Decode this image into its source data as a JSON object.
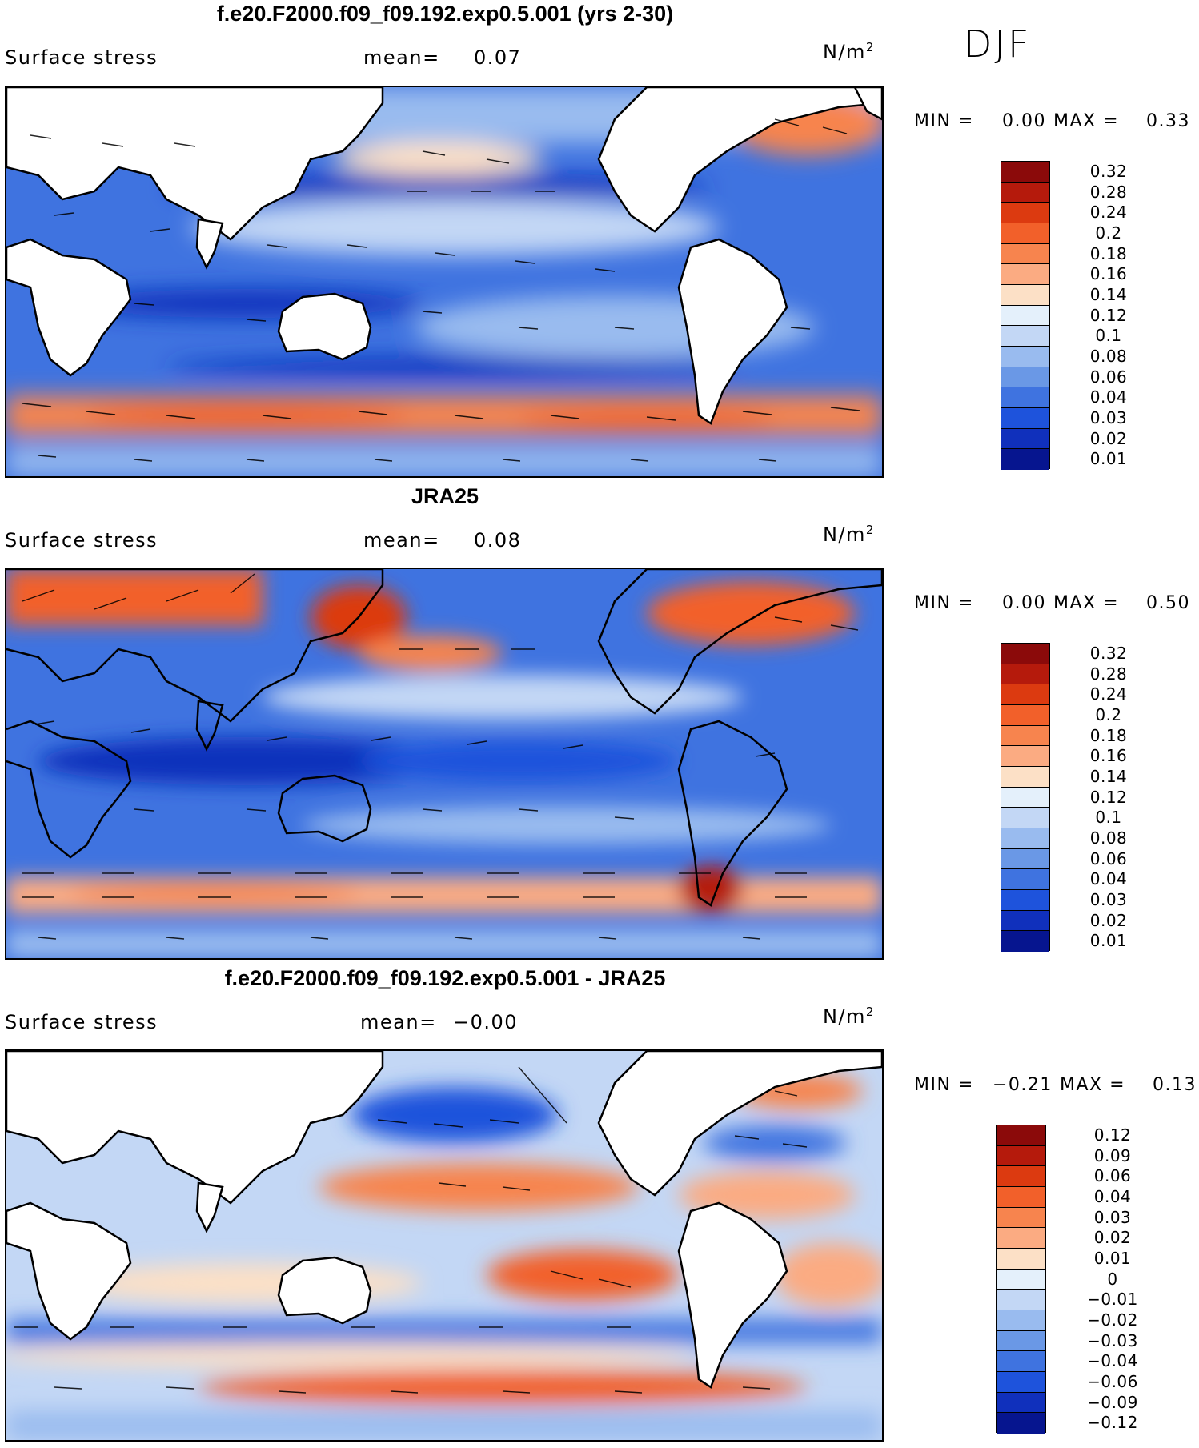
{
  "season": "DJF",
  "panels": [
    {
      "id": "model",
      "title": "f.e20.F2000.f09_f09.192.exp0.5.001 (yrs 2-30)",
      "variable": "Surface stress",
      "mean_label": "mean=",
      "mean_value": "0.07",
      "unit_base": "N/m",
      "unit_exp": "2",
      "min_label": "MIN =",
      "min_value": "0.00",
      "max_label": "MAX =",
      "max_value": "0.33",
      "colorbar_labels": [
        "0.32",
        "0.28",
        "0.24",
        "0.2",
        "0.18",
        "0.16",
        "0.14",
        "0.12",
        "0.1",
        "0.08",
        "0.06",
        "0.04",
        "0.03",
        "0.02",
        "0.01"
      ],
      "colorbar_colors": [
        "#8b0a0a",
        "#b51a0c",
        "#dc3a10",
        "#f2602a",
        "#f7844e",
        "#fbab82",
        "#fce0c6",
        "#e4f0fb",
        "#c3d7f5",
        "#99bbef",
        "#6a98e6",
        "#3f73e0",
        "#1e53dc",
        "#1030bc",
        "#06158f"
      ]
    },
    {
      "id": "obs",
      "title": "JRA25",
      "variable": "Surface stress",
      "mean_label": "mean=",
      "mean_value": "0.08",
      "unit_base": "N/m",
      "unit_exp": "2",
      "min_label": "MIN =",
      "min_value": "0.00",
      "max_label": "MAX =",
      "max_value": "0.50",
      "colorbar_labels": [
        "0.32",
        "0.28",
        "0.24",
        "0.2",
        "0.18",
        "0.16",
        "0.14",
        "0.12",
        "0.1",
        "0.08",
        "0.06",
        "0.04",
        "0.03",
        "0.02",
        "0.01"
      ],
      "colorbar_colors": [
        "#8b0a0a",
        "#b51a0c",
        "#dc3a10",
        "#f2602a",
        "#f7844e",
        "#fbab82",
        "#fce0c6",
        "#e4f0fb",
        "#c3d7f5",
        "#99bbef",
        "#6a98e6",
        "#3f73e0",
        "#1e53dc",
        "#1030bc",
        "#06158f"
      ]
    },
    {
      "id": "diff",
      "title": "f.e20.F2000.f09_f09.192.exp0.5.001 - JRA25",
      "variable": "Surface stress",
      "mean_label": "mean=",
      "mean_value": "−0.00",
      "unit_base": "N/m",
      "unit_exp": "2",
      "min_label": "MIN =",
      "min_value": "−0.21",
      "max_label": "MAX =",
      "max_value": "0.13",
      "colorbar_labels": [
        "0.12",
        "0.09",
        "0.06",
        "0.04",
        "0.03",
        "0.02",
        "0.01",
        "0",
        "−0.01",
        "−0.02",
        "−0.03",
        "−0.04",
        "−0.06",
        "−0.09",
        "−0.12"
      ],
      "colorbar_colors": [
        "#8b0a0a",
        "#b51a0c",
        "#dc3a10",
        "#f2602a",
        "#f7844e",
        "#fbab82",
        "#fce0c6",
        "#e4f0fb",
        "#c3d7f5",
        "#99bbef",
        "#6a98e6",
        "#3f73e0",
        "#1e53dc",
        "#1030bc",
        "#06158f"
      ]
    }
  ]
}
